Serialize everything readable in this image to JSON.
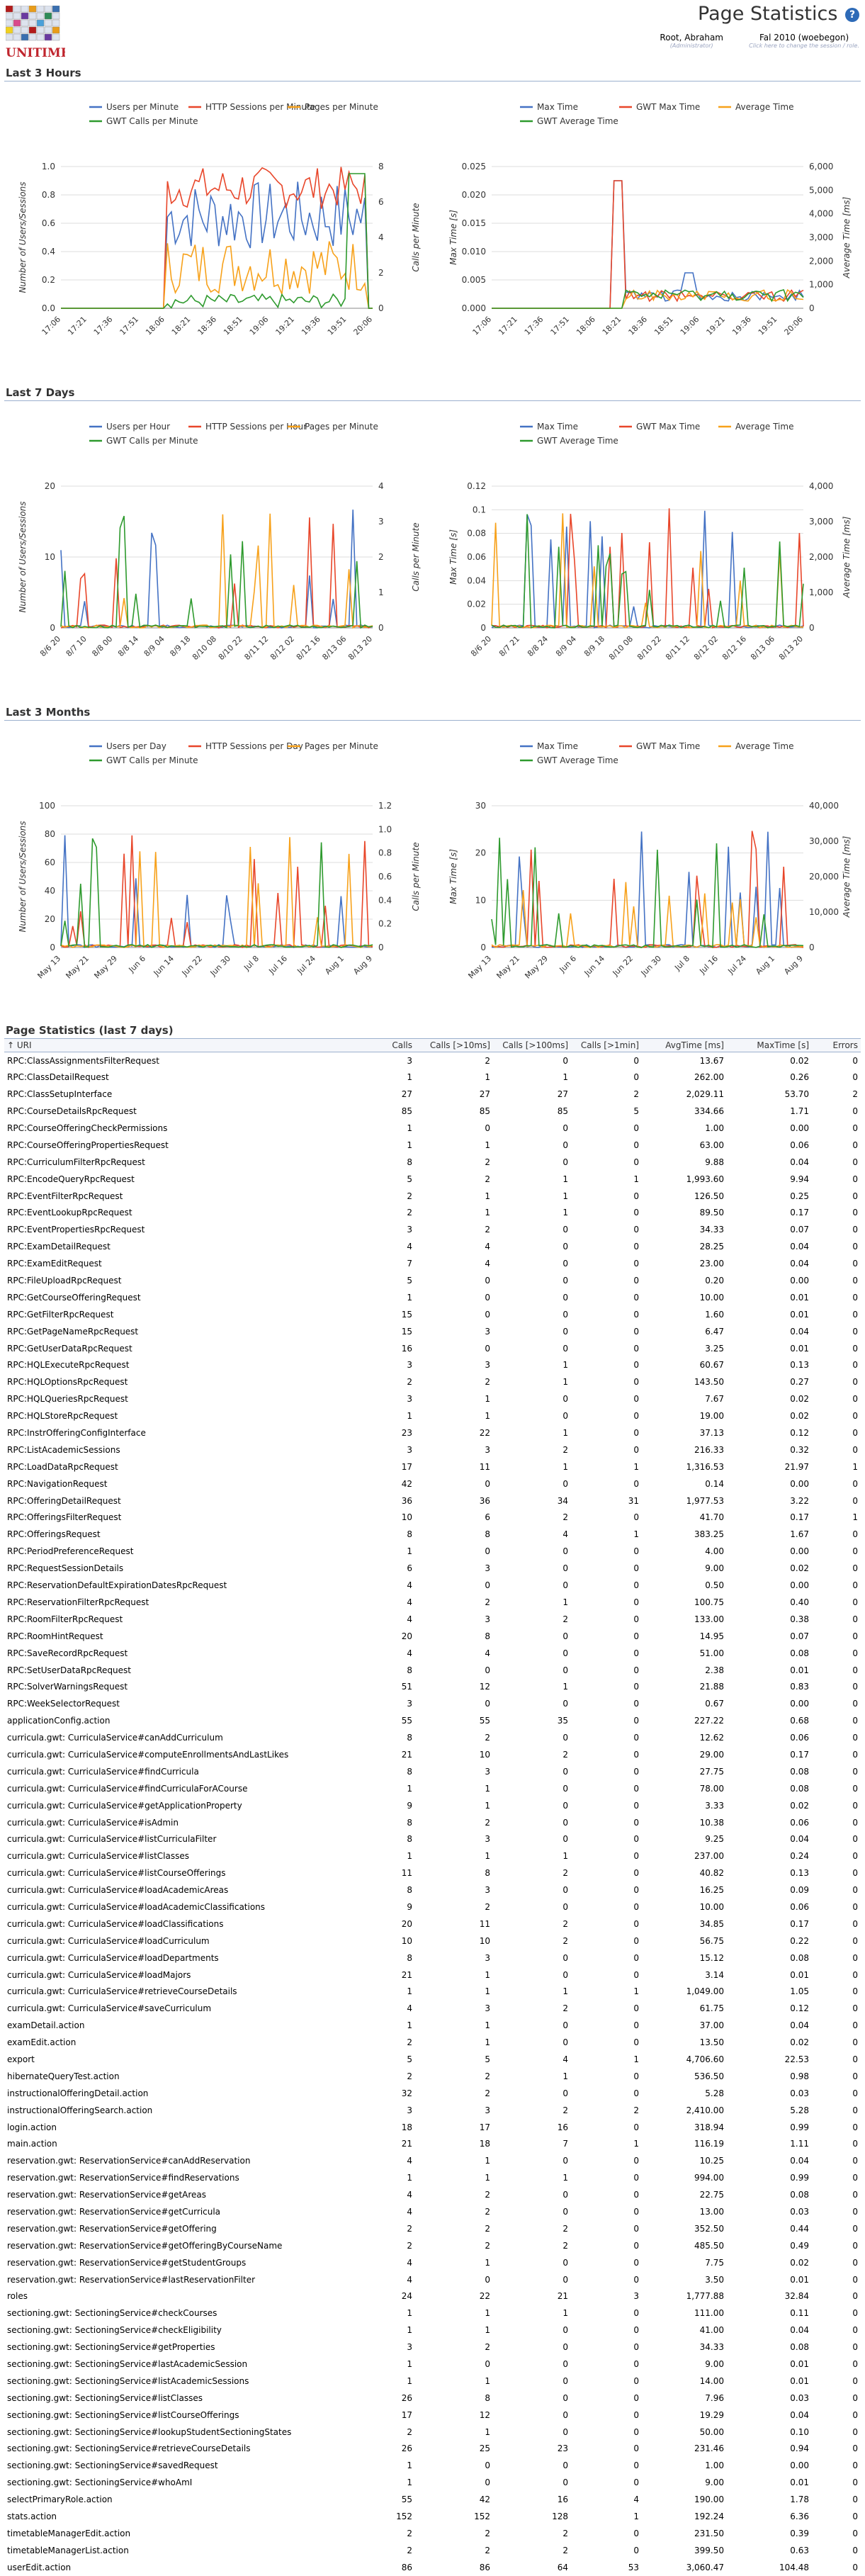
{
  "header": {
    "app_name": "UNITIME",
    "page_title": "Page Statistics",
    "help_icon": "?",
    "user_name": "Root, Abraham",
    "user_role": "(Administrator)",
    "session_name": "Fal 2010 (woebegon)",
    "session_hint": "Click here to change the session / role."
  },
  "sections": {
    "last3hours": "Last 3 Hours",
    "last7days": "Last 7 Days",
    "last3months": "Last 3 Months",
    "stats": "Page Statistics (last 7 days)"
  },
  "colors": {
    "blue": "#4472c4",
    "red": "#e8462a",
    "orange": "#f7a11a",
    "green": "#2e9a2e"
  },
  "charts": {
    "hours_users": {
      "legend": [
        "Users per Minute",
        "HTTP Sessions per Minute",
        "Pages per Minute",
        "GWT Calls per Minute"
      ],
      "yleft_label": "Number of Users/Sessions",
      "yright_label": "Calls per Minute",
      "yleft_ticks": [
        "0.0",
        "0.2",
        "0.4",
        "0.6",
        "0.8",
        "1.0"
      ],
      "yright_ticks": [
        "0",
        "2",
        "4",
        "6",
        "8"
      ],
      "x_ticks": [
        "17:06",
        "17:21",
        "17:36",
        "17:51",
        "18:06",
        "18:21",
        "18:36",
        "18:51",
        "19:06",
        "19:21",
        "19:36",
        "19:51",
        "20:06"
      ]
    },
    "hours_times": {
      "legend": [
        "Max Time",
        "GWT Max Time",
        "Average Time",
        "GWT Average Time"
      ],
      "yleft_label": "Max Time [s]",
      "yright_label": "Average Time [ms]",
      "yleft_ticks": [
        "0.000",
        "0.005",
        "0.010",
        "0.015",
        "0.020",
        "0.025"
      ],
      "yright_ticks": [
        "0",
        "1,000",
        "2,000",
        "3,000",
        "4,000",
        "5,000",
        "6,000"
      ],
      "x_ticks": [
        "17:06",
        "17:21",
        "17:36",
        "17:51",
        "18:06",
        "18:21",
        "18:36",
        "18:51",
        "19:06",
        "19:21",
        "19:36",
        "19:51",
        "20:06"
      ]
    },
    "days_users": {
      "legend": [
        "Users per Hour",
        "HTTP Sessions per Hour",
        "Pages per Minute",
        "GWT Calls per Minute"
      ],
      "yleft_label": "Number of Users/Sessions",
      "yright_label": "Calls per Minute",
      "yleft_ticks": [
        "0",
        "10",
        "20"
      ],
      "yleft_minor": [
        "5",
        "15"
      ],
      "yright_ticks": [
        "0",
        "1",
        "2",
        "3",
        "4"
      ],
      "x_ticks": [
        "8/6 20",
        "8/7 10",
        "8/8 00",
        "8/8 14",
        "8/9 04",
        "8/9 18",
        "8/10 08",
        "8/10 22",
        "8/11 12",
        "8/12 02",
        "8/12 16",
        "8/13 06",
        "8/13 20"
      ]
    },
    "days_times": {
      "legend": [
        "Max Time",
        "GWT Max Time",
        "Average Time",
        "GWT Average Time"
      ],
      "yleft_label": "Max Time [s]",
      "yright_label": "Average Time [ms]",
      "yleft_ticks": [
        "0",
        "0.02",
        "0.04",
        "0.06",
        "0.08",
        "0.1",
        "0.12"
      ],
      "yright_ticks": [
        "0",
        "1,000",
        "2,000",
        "3,000",
        "4,000"
      ],
      "x_ticks": [
        "8/6 20",
        "8/7 21",
        "8/8 24",
        "8/9 04",
        "8/9 18",
        "8/10 08",
        "8/10 22",
        "8/11 12",
        "8/12 02",
        "8/12 16",
        "8/13 06",
        "8/13 20"
      ]
    },
    "months_users": {
      "legend": [
        "Users per Day",
        "HTTP Sessions per Day",
        "Pages per Minute",
        "GWT Calls per Minute"
      ],
      "yleft_label": "Number of Users/Sessions",
      "yright_label": "Calls per Minute",
      "yleft_ticks": [
        "0",
        "20",
        "40",
        "60",
        "80",
        "100"
      ],
      "yright_ticks": [
        "0",
        "0.2",
        "0.4",
        "0.6",
        "0.8",
        "1.0",
        "1.2"
      ],
      "x_ticks": [
        "May 13",
        "May 21",
        "May 29",
        "Jun 6",
        "Jun 14",
        "Jun 22",
        "Jun 30",
        "Jul 8",
        "Jul 16",
        "Jul 24",
        "Aug 1",
        "Aug 9"
      ]
    },
    "months_times": {
      "legend": [
        "Max Time",
        "GWT Max Time",
        "Average Time",
        "GWT Average Time"
      ],
      "yleft_label": "Max Time [s]",
      "yright_label": "Average Time [ms]",
      "yleft_ticks": [
        "0",
        "10",
        "20",
        "30"
      ],
      "yright_ticks": [
        "0",
        "10,000",
        "20,000",
        "30,000",
        "40,000"
      ],
      "x_ticks": [
        "May 13",
        "May 21",
        "May 29",
        "Jun 6",
        "Jun 14",
        "Jun 22",
        "Jun 30",
        "Jul 8",
        "Jul 16",
        "Jul 24",
        "Aug 1",
        "Aug 9"
      ]
    }
  },
  "table": {
    "columns": [
      "↑ URI",
      "Calls",
      "Calls [>10ms]",
      "Calls [>100ms]",
      "Calls [>1min]",
      "AvgTime [ms]",
      "MaxTime [s]",
      "Errors"
    ],
    "rows": [
      [
        "RPC:ClassAssignmentsFilterRequest",
        "3",
        "2",
        "0",
        "0",
        "13.67",
        "0.02",
        "0"
      ],
      [
        "RPC:ClassDetailRequest",
        "1",
        "1",
        "1",
        "0",
        "262.00",
        "0.26",
        "0"
      ],
      [
        "RPC:ClassSetupInterface",
        "27",
        "27",
        "27",
        "2",
        "2,029.11",
        "53.70",
        "2"
      ],
      [
        "RPC:CourseDetailsRpcRequest",
        "85",
        "85",
        "85",
        "5",
        "334.66",
        "1.71",
        "0"
      ],
      [
        "RPC:CourseOfferingCheckPermissions",
        "1",
        "0",
        "0",
        "0",
        "1.00",
        "0.00",
        "0"
      ],
      [
        "RPC:CourseOfferingPropertiesRequest",
        "1",
        "1",
        "0",
        "0",
        "63.00",
        "0.06",
        "0"
      ],
      [
        "RPC:CurriculumFilterRpcRequest",
        "8",
        "2",
        "0",
        "0",
        "9.88",
        "0.04",
        "0"
      ],
      [
        "RPC:EncodeQueryRpcRequest",
        "5",
        "2",
        "1",
        "1",
        "1,993.60",
        "9.94",
        "0"
      ],
      [
        "RPC:EventFilterRpcRequest",
        "2",
        "1",
        "1",
        "0",
        "126.50",
        "0.25",
        "0"
      ],
      [
        "RPC:EventLookupRpcRequest",
        "2",
        "1",
        "1",
        "0",
        "89.50",
        "0.17",
        "0"
      ],
      [
        "RPC:EventPropertiesRpcRequest",
        "3",
        "2",
        "0",
        "0",
        "34.33",
        "0.07",
        "0"
      ],
      [
        "RPC:ExamDetailRequest",
        "4",
        "4",
        "0",
        "0",
        "28.25",
        "0.04",
        "0"
      ],
      [
        "RPC:ExamEditRequest",
        "7",
        "4",
        "0",
        "0",
        "23.00",
        "0.04",
        "0"
      ],
      [
        "RPC:FileUploadRpcRequest",
        "5",
        "0",
        "0",
        "0",
        "0.20",
        "0.00",
        "0"
      ],
      [
        "RPC:GetCourseOfferingRequest",
        "1",
        "0",
        "0",
        "0",
        "10.00",
        "0.01",
        "0"
      ],
      [
        "RPC:GetFilterRpcRequest",
        "15",
        "0",
        "0",
        "0",
        "1.60",
        "0.01",
        "0"
      ],
      [
        "RPC:GetPageNameRpcRequest",
        "15",
        "3",
        "0",
        "0",
        "6.47",
        "0.04",
        "0"
      ],
      [
        "RPC:GetUserDataRpcRequest",
        "16",
        "0",
        "0",
        "0",
        "3.25",
        "0.01",
        "0"
      ],
      [
        "RPC:HQLExecuteRpcRequest",
        "3",
        "3",
        "1",
        "0",
        "60.67",
        "0.13",
        "0"
      ],
      [
        "RPC:HQLOptionsRpcRequest",
        "2",
        "2",
        "1",
        "0",
        "143.50",
        "0.27",
        "0"
      ],
      [
        "RPC:HQLQueriesRpcRequest",
        "3",
        "1",
        "0",
        "0",
        "7.67",
        "0.02",
        "0"
      ],
      [
        "RPC:HQLStoreRpcRequest",
        "1",
        "1",
        "0",
        "0",
        "19.00",
        "0.02",
        "0"
      ],
      [
        "RPC:InstrOfferingConfigInterface",
        "23",
        "22",
        "1",
        "0",
        "37.13",
        "0.12",
        "0"
      ],
      [
        "RPC:ListAcademicSessions",
        "3",
        "3",
        "2",
        "0",
        "216.33",
        "0.32",
        "0"
      ],
      [
        "RPC:LoadDataRpcRequest",
        "17",
        "11",
        "1",
        "1",
        "1,316.53",
        "21.97",
        "1"
      ],
      [
        "RPC:NavigationRequest",
        "42",
        "0",
        "0",
        "0",
        "0.14",
        "0.00",
        "0"
      ],
      [
        "RPC:OfferingDetailRequest",
        "36",
        "36",
        "34",
        "31",
        "1,977.53",
        "3.22",
        "0"
      ],
      [
        "RPC:OfferingsFilterRequest",
        "10",
        "6",
        "2",
        "0",
        "41.70",
        "0.17",
        "1"
      ],
      [
        "RPC:OfferingsRequest",
        "8",
        "8",
        "4",
        "1",
        "383.25",
        "1.67",
        "0"
      ],
      [
        "RPC:PeriodPreferenceRequest",
        "1",
        "0",
        "0",
        "0",
        "4.00",
        "0.00",
        "0"
      ],
      [
        "RPC:RequestSessionDetails",
        "6",
        "3",
        "0",
        "0",
        "9.00",
        "0.02",
        "0"
      ],
      [
        "RPC:ReservationDefaultExpirationDatesRpcRequest",
        "4",
        "0",
        "0",
        "0",
        "0.50",
        "0.00",
        "0"
      ],
      [
        "RPC:ReservationFilterRpcRequest",
        "4",
        "2",
        "1",
        "0",
        "100.75",
        "0.40",
        "0"
      ],
      [
        "RPC:RoomFilterRpcRequest",
        "4",
        "3",
        "2",
        "0",
        "133.00",
        "0.38",
        "0"
      ],
      [
        "RPC:RoomHintRequest",
        "20",
        "8",
        "0",
        "0",
        "14.95",
        "0.07",
        "0"
      ],
      [
        "RPC:SaveRecordRpcRequest",
        "4",
        "4",
        "0",
        "0",
        "51.00",
        "0.08",
        "0"
      ],
      [
        "RPC:SetUserDataRpcRequest",
        "8",
        "0",
        "0",
        "0",
        "2.38",
        "0.01",
        "0"
      ],
      [
        "RPC:SolverWarningsRequest",
        "51",
        "12",
        "1",
        "0",
        "21.88",
        "0.83",
        "0"
      ],
      [
        "RPC:WeekSelectorRequest",
        "3",
        "0",
        "0",
        "0",
        "0.67",
        "0.00",
        "0"
      ],
      [
        "applicationConfig.action",
        "55",
        "55",
        "35",
        "0",
        "227.22",
        "0.68",
        "0"
      ],
      [
        "curricula.gwt: CurriculaService#canAddCurriculum",
        "8",
        "2",
        "0",
        "0",
        "12.62",
        "0.06",
        "0"
      ],
      [
        "curricula.gwt: CurriculaService#computeEnrollmentsAndLastLikes",
        "21",
        "10",
        "2",
        "0",
        "29.00",
        "0.17",
        "0"
      ],
      [
        "curricula.gwt: CurriculaService#findCurricula",
        "8",
        "3",
        "0",
        "0",
        "27.75",
        "0.08",
        "0"
      ],
      [
        "curricula.gwt: CurriculaService#findCurriculaForACourse",
        "1",
        "1",
        "0",
        "0",
        "78.00",
        "0.08",
        "0"
      ],
      [
        "curricula.gwt: CurriculaService#getApplicationProperty",
        "9",
        "1",
        "0",
        "0",
        "3.33",
        "0.02",
        "0"
      ],
      [
        "curricula.gwt: CurriculaService#isAdmin",
        "8",
        "2",
        "0",
        "0",
        "10.38",
        "0.06",
        "0"
      ],
      [
        "curricula.gwt: CurriculaService#listCurriculaFilter",
        "8",
        "3",
        "0",
        "0",
        "9.25",
        "0.04",
        "0"
      ],
      [
        "curricula.gwt: CurriculaService#listClasses",
        "1",
        "1",
        "1",
        "0",
        "237.00",
        "0.24",
        "0"
      ],
      [
        "curricula.gwt: CurriculaService#listCourseOfferings",
        "11",
        "8",
        "2",
        "0",
        "40.82",
        "0.13",
        "0"
      ],
      [
        "curricula.gwt: CurriculaService#loadAcademicAreas",
        "8",
        "3",
        "0",
        "0",
        "16.25",
        "0.09",
        "0"
      ],
      [
        "curricula.gwt: CurriculaService#loadAcademicClassifications",
        "9",
        "2",
        "0",
        "0",
        "10.00",
        "0.06",
        "0"
      ],
      [
        "curricula.gwt: CurriculaService#loadClassifications",
        "20",
        "11",
        "2",
        "0",
        "34.85",
        "0.17",
        "0"
      ],
      [
        "curricula.gwt: CurriculaService#loadCurriculum",
        "10",
        "10",
        "2",
        "0",
        "56.75",
        "0.22",
        "0"
      ],
      [
        "curricula.gwt: CurriculaService#loadDepartments",
        "8",
        "3",
        "0",
        "0",
        "15.12",
        "0.08",
        "0"
      ],
      [
        "curricula.gwt: CurriculaService#loadMajors",
        "21",
        "1",
        "0",
        "0",
        "3.14",
        "0.01",
        "0"
      ],
      [
        "curricula.gwt: CurriculaService#retrieveCourseDetails",
        "1",
        "1",
        "1",
        "1",
        "1,049.00",
        "1.05",
        "0"
      ],
      [
        "curricula.gwt: CurriculaService#saveCurriculum",
        "4",
        "3",
        "2",
        "0",
        "61.75",
        "0.12",
        "0"
      ],
      [
        "examDetail.action",
        "1",
        "1",
        "0",
        "0",
        "37.00",
        "0.04",
        "0"
      ],
      [
        "examEdit.action",
        "2",
        "1",
        "0",
        "0",
        "13.50",
        "0.02",
        "0"
      ],
      [
        "export",
        "5",
        "5",
        "4",
        "1",
        "4,706.60",
        "22.53",
        "0"
      ],
      [
        "hibernateQueryTest.action",
        "2",
        "2",
        "1",
        "0",
        "536.50",
        "0.98",
        "0"
      ],
      [
        "instructionalOfferingDetail.action",
        "32",
        "2",
        "0",
        "0",
        "5.28",
        "0.03",
        "0"
      ],
      [
        "instructionalOfferingSearch.action",
        "3",
        "3",
        "2",
        "2",
        "2,410.00",
        "5.28",
        "0"
      ],
      [
        "login.action",
        "18",
        "17",
        "16",
        "0",
        "318.94",
        "0.99",
        "0"
      ],
      [
        "main.action",
        "21",
        "18",
        "7",
        "1",
        "116.19",
        "1.11",
        "0"
      ],
      [
        "reservation.gwt: ReservationService#canAddReservation",
        "4",
        "1",
        "0",
        "0",
        "10.25",
        "0.04",
        "0"
      ],
      [
        "reservation.gwt: ReservationService#findReservations",
        "1",
        "1",
        "1",
        "0",
        "994.00",
        "0.99",
        "0"
      ],
      [
        "reservation.gwt: ReservationService#getAreas",
        "4",
        "2",
        "0",
        "0",
        "22.75",
        "0.08",
        "0"
      ],
      [
        "reservation.gwt: ReservationService#getCurricula",
        "4",
        "2",
        "0",
        "0",
        "13.00",
        "0.03",
        "0"
      ],
      [
        "reservation.gwt: ReservationService#getOffering",
        "2",
        "2",
        "2",
        "0",
        "352.50",
        "0.44",
        "0"
      ],
      [
        "reservation.gwt: ReservationService#getOfferingByCourseName",
        "2",
        "2",
        "2",
        "0",
        "485.50",
        "0.49",
        "0"
      ],
      [
        "reservation.gwt: ReservationService#getStudentGroups",
        "4",
        "1",
        "0",
        "0",
        "7.75",
        "0.02",
        "0"
      ],
      [
        "reservation.gwt: ReservationService#lastReservationFilter",
        "4",
        "0",
        "0",
        "0",
        "3.50",
        "0.01",
        "0"
      ],
      [
        "roles",
        "24",
        "22",
        "21",
        "3",
        "1,777.88",
        "32.84",
        "0"
      ],
      [
        "sectioning.gwt: SectioningService#checkCourses",
        "1",
        "1",
        "1",
        "0",
        "111.00",
        "0.11",
        "0"
      ],
      [
        "sectioning.gwt: SectioningService#checkEligibility",
        "1",
        "1",
        "0",
        "0",
        "41.00",
        "0.04",
        "0"
      ],
      [
        "sectioning.gwt: SectioningService#getProperties",
        "3",
        "2",
        "0",
        "0",
        "34.33",
        "0.08",
        "0"
      ],
      [
        "sectioning.gwt: SectioningService#lastAcademicSession",
        "1",
        "0",
        "0",
        "0",
        "9.00",
        "0.01",
        "0"
      ],
      [
        "sectioning.gwt: SectioningService#listAcademicSessions",
        "1",
        "1",
        "0",
        "0",
        "14.00",
        "0.01",
        "0"
      ],
      [
        "sectioning.gwt: SectioningService#listClasses",
        "26",
        "8",
        "0",
        "0",
        "7.96",
        "0.03",
        "0"
      ],
      [
        "sectioning.gwt: SectioningService#listCourseOfferings",
        "17",
        "12",
        "0",
        "0",
        "19.29",
        "0.04",
        "0"
      ],
      [
        "sectioning.gwt: SectioningService#lookupStudentSectioningStates",
        "2",
        "1",
        "0",
        "0",
        "50.00",
        "0.10",
        "0"
      ],
      [
        "sectioning.gwt: SectioningService#retrieveCourseDetails",
        "26",
        "25",
        "23",
        "0",
        "231.46",
        "0.94",
        "0"
      ],
      [
        "sectioning.gwt: SectioningService#savedRequest",
        "1",
        "0",
        "0",
        "0",
        "1.00",
        "0.00",
        "0"
      ],
      [
        "sectioning.gwt: SectioningService#whoAmI",
        "1",
        "0",
        "0",
        "0",
        "9.00",
        "0.01",
        "0"
      ],
      [
        "selectPrimaryRole.action",
        "55",
        "42",
        "16",
        "4",
        "190.00",
        "1.78",
        "0"
      ],
      [
        "stats.action",
        "152",
        "152",
        "128",
        "1",
        "192.24",
        "6.36",
        "0"
      ],
      [
        "timetableManagerEdit.action",
        "2",
        "2",
        "2",
        "0",
        "231.50",
        "0.39",
        "0"
      ],
      [
        "timetableManagerList.action",
        "2",
        "2",
        "2",
        "0",
        "399.50",
        "0.63",
        "0"
      ],
      [
        "userEdit.action",
        "86",
        "86",
        "64",
        "53",
        "3,060.47",
        "104.48",
        "0"
      ]
    ]
  }
}
